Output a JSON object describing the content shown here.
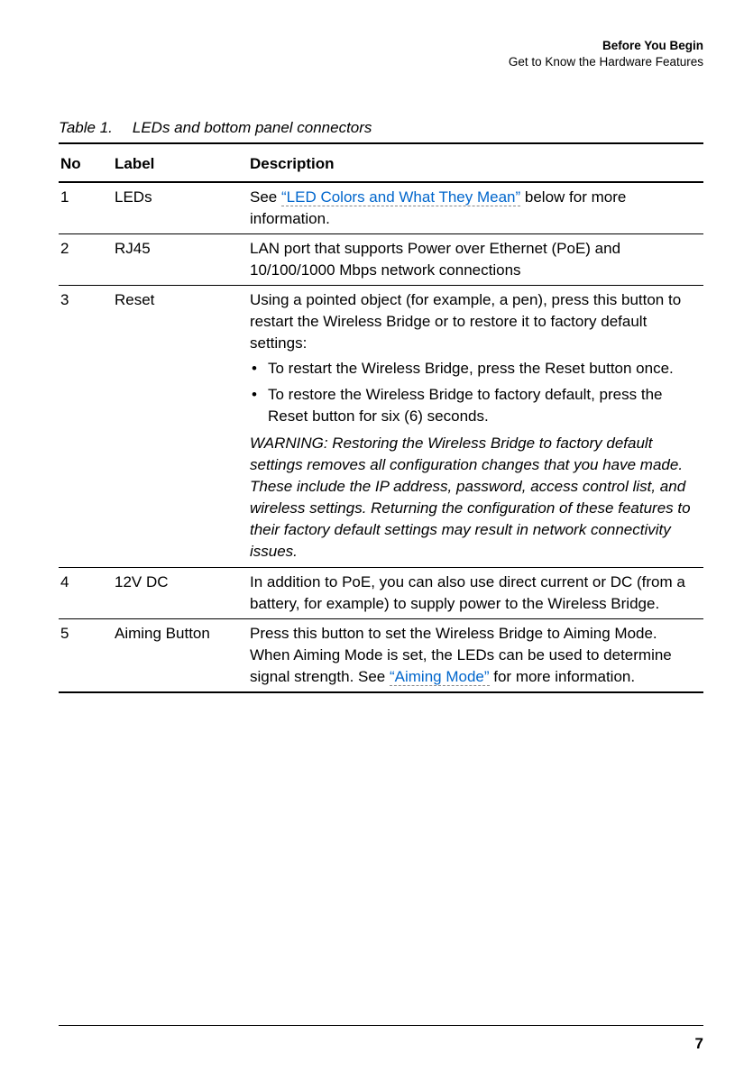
{
  "header": {
    "chapter": "Before You Begin",
    "section": "Get to Know the Hardware Features"
  },
  "caption": {
    "num": "Table 1.",
    "title": "LEDs and bottom panel connectors"
  },
  "columns": [
    "No",
    "Label",
    "Description"
  ],
  "rows": [
    {
      "no": "1",
      "label": "LEDs",
      "d_pre": "See ",
      "d_link": "“LED Colors and What They Mean”",
      "d_post": " below for more information."
    },
    {
      "no": "2",
      "label": "RJ45",
      "d_text": "LAN port that supports Power over Ethernet (PoE) and 10/100/1000 Mbps network connections"
    },
    {
      "no": "3",
      "label": "Reset",
      "d_intro": "Using a pointed object (for example, a pen), press this button to restart the Wireless Bridge or to restore it to factory default settings:",
      "d_b1": "To restart the Wireless Bridge, press the Reset button once.",
      "d_b2": "To restore the Wireless Bridge to factory default, press the Reset button for six (6) seconds.",
      "d_warn": "WARNING: Restoring the Wireless Bridge to factory default settings removes all configuration changes that you have made. These include the IP address, password, access control list, and wireless settings. Returning the configuration of these features to their factory default settings may result in network connectivity issues."
    },
    {
      "no": "4",
      "label": "12V DC",
      "d_text": "In addition to PoE, you can also use direct current or DC (from a battery, for example) to supply power to the Wireless Bridge."
    },
    {
      "no": "5",
      "label": "Aiming Button",
      "d_pre": "Press this button to set the Wireless Bridge to Aiming Mode. When Aiming Mode is set, the LEDs can be used to determine signal strength. See ",
      "d_link": "“Aiming Mode”",
      "d_post": " for more information."
    }
  ],
  "page_number": "7",
  "colors": {
    "link": "#0066cc",
    "underline": "#888888"
  }
}
